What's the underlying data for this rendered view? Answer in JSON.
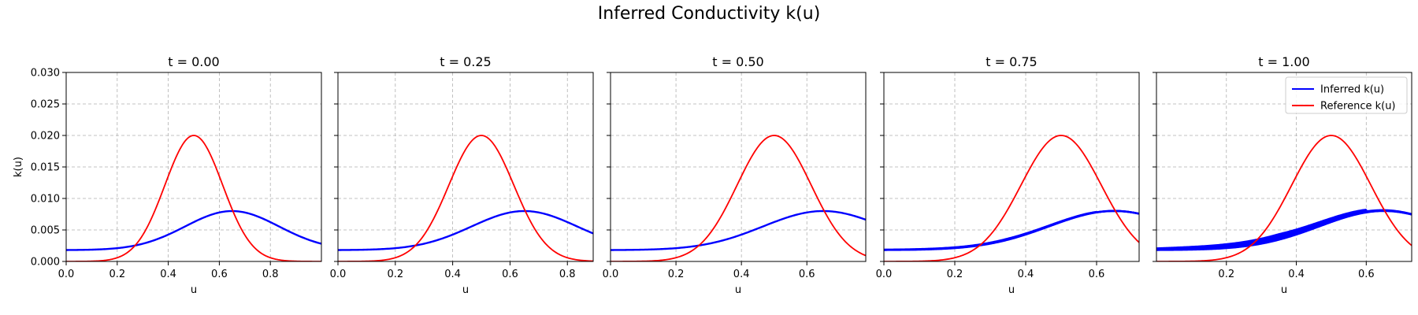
{
  "chart_data": {
    "type": "line",
    "title": "Inferred Conductivity k(u)",
    "ylabel": "k(u)",
    "xlabel": "u",
    "ylim": [
      0,
      0.03
    ],
    "yticks": [
      "0.000",
      "0.005",
      "0.010",
      "0.015",
      "0.020",
      "0.025",
      "0.030"
    ],
    "legend": {
      "location": "top-right",
      "entries": [
        {
          "label": "Inferred k(u)",
          "color": "#0000ff"
        },
        {
          "label": "Reference k(u)",
          "color": "#ff0000"
        }
      ]
    },
    "reference_curve": {
      "name": "Reference k(u)",
      "peak": 0.02,
      "center": 0.5,
      "width": 0.16
    },
    "inferred_curve": {
      "name": "Inferred k(u)",
      "peak": 0.008,
      "center": 0.65,
      "width": 0.26,
      "baseline": 0.0018,
      "x_min": 0.0
    },
    "panels": [
      {
        "title": "t = 0.00",
        "xlim": [
          0,
          1.0
        ],
        "xticks": [
          "0.0",
          "0.2",
          "0.4",
          "0.6",
          "0.8"
        ],
        "xtick_values": [
          0,
          0.2,
          0.4,
          0.6,
          0.8
        ],
        "inferred_spread": 0.0
      },
      {
        "title": "t = 0.25",
        "xlim": [
          0,
          0.89
        ],
        "xticks": [
          "0.0",
          "0.2",
          "0.4",
          "0.6",
          "0.8"
        ],
        "xtick_values": [
          0,
          0.2,
          0.4,
          0.6,
          0.8
        ],
        "inferred_spread": 0.0
      },
      {
        "title": "t = 0.50",
        "xlim": [
          0,
          0.78
        ],
        "xticks": [
          "0.0",
          "0.2",
          "0.4",
          "0.6"
        ],
        "xtick_values": [
          0,
          0.2,
          0.4,
          0.6
        ],
        "inferred_spread": 0.0
      },
      {
        "title": "t = 0.75",
        "xlim": [
          0,
          0.72
        ],
        "xticks": [
          "0.0",
          "0.2",
          "0.4",
          "0.6"
        ],
        "xtick_values": [
          0,
          0.2,
          0.4,
          0.6
        ],
        "inferred_spread": 0.0002
      },
      {
        "title": "t = 1.00",
        "xlim": [
          0,
          0.73
        ],
        "xticks": [
          "0.2",
          "0.4",
          "0.6"
        ],
        "xtick_values": [
          0.2,
          0.4,
          0.6
        ],
        "inferred_spread": 0.0009
      }
    ]
  }
}
